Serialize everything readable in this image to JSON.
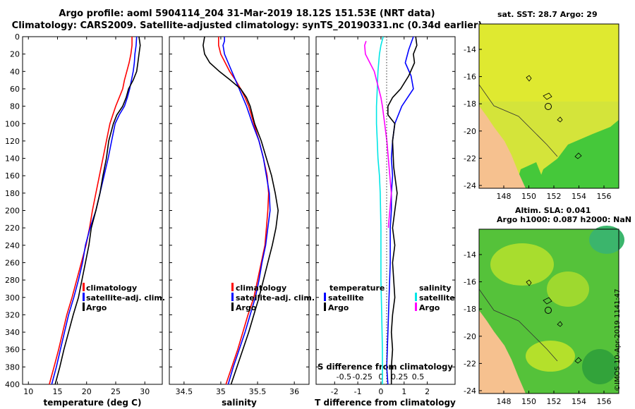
{
  "header": {
    "title_line1": "Argo profile: aoml 5904114_204 31-Mar-2019 18.12S 151.53E (NRT data)",
    "title_line2": "Climatology: CARS2009. Satellite-adjusted climatology: synTS_20190331.nc (0.34d earlier)"
  },
  "colors": {
    "climatology": "#ff0000",
    "satellite": "#0000ff",
    "argo": "#000000",
    "sal_argo": "#ff00ff",
    "sal_sat": "#00e6e6"
  },
  "chart_data": [
    {
      "type": "line",
      "id": "temperature",
      "xlabel": "temperature (deg C)",
      "ylabel": "",
      "xlim": [
        9,
        33
      ],
      "ylim": [
        400,
        0
      ],
      "xticks": [
        "10",
        "15",
        "20",
        "25",
        "30"
      ],
      "yticks": [
        "0",
        "20",
        "40",
        "60",
        "80",
        "100",
        "120",
        "140",
        "160",
        "180",
        "200",
        "220",
        "240",
        "260",
        "280",
        "300",
        "320",
        "340",
        "360",
        "380",
        "400"
      ],
      "legend": [
        "climatology",
        "satellite-adj. clim.",
        "Argo"
      ],
      "series": [
        {
          "name": "climatology",
          "color": "#ff0000",
          "points": [
            [
              27.8,
              0
            ],
            [
              27.8,
              10
            ],
            [
              27.6,
              20
            ],
            [
              27.3,
              30
            ],
            [
              26.9,
              40
            ],
            [
              26.5,
              50
            ],
            [
              26.2,
              60
            ],
            [
              25.6,
              70
            ],
            [
              25.0,
              80
            ],
            [
              24.5,
              90
            ],
            [
              24.0,
              100
            ],
            [
              23.4,
              120
            ],
            [
              22.8,
              140
            ],
            [
              22.2,
              160
            ],
            [
              21.6,
              180
            ],
            [
              21.0,
              200
            ],
            [
              20.5,
              220
            ],
            [
              19.9,
              240
            ],
            [
              19.1,
              260
            ],
            [
              18.3,
              280
            ],
            [
              17.5,
              300
            ],
            [
              16.6,
              320
            ],
            [
              15.9,
              340
            ],
            [
              15.2,
              360
            ],
            [
              14.4,
              380
            ],
            [
              13.6,
              400
            ]
          ]
        },
        {
          "name": "satellite-adj. clim.",
          "color": "#0000ff",
          "points": [
            [
              28.6,
              0
            ],
            [
              28.5,
              10
            ],
            [
              28.3,
              20
            ],
            [
              28.2,
              30
            ],
            [
              28.0,
              40
            ],
            [
              27.7,
              50
            ],
            [
              27.4,
              60
            ],
            [
              27.0,
              70
            ],
            [
              26.5,
              80
            ],
            [
              25.6,
              90
            ],
            [
              24.9,
              100
            ],
            [
              24.3,
              120
            ],
            [
              23.7,
              140
            ],
            [
              23.0,
              160
            ],
            [
              22.3,
              180
            ],
            [
              21.6,
              200
            ],
            [
              20.6,
              220
            ],
            [
              19.8,
              240
            ],
            [
              19.3,
              260
            ],
            [
              18.6,
              280
            ],
            [
              17.8,
              300
            ],
            [
              16.9,
              320
            ],
            [
              16.2,
              340
            ],
            [
              15.5,
              360
            ],
            [
              14.8,
              380
            ],
            [
              14.0,
              400
            ]
          ]
        },
        {
          "name": "Argo",
          "color": "#000000",
          "points": [
            [
              29.0,
              0
            ],
            [
              29.2,
              10
            ],
            [
              29.0,
              20
            ],
            [
              28.8,
              30
            ],
            [
              28.6,
              40
            ],
            [
              28.0,
              50
            ],
            [
              27.2,
              60
            ],
            [
              26.8,
              70
            ],
            [
              26.2,
              80
            ],
            [
              25.2,
              90
            ],
            [
              24.6,
              100
            ],
            [
              23.8,
              120
            ],
            [
              23.4,
              140
            ],
            [
              22.8,
              160
            ],
            [
              22.3,
              180
            ],
            [
              21.6,
              200
            ],
            [
              20.8,
              220
            ],
            [
              20.4,
              240
            ],
            [
              19.8,
              260
            ],
            [
              19.2,
              280
            ],
            [
              18.6,
              300
            ],
            [
              17.7,
              320
            ],
            [
              16.9,
              340
            ],
            [
              16.1,
              360
            ],
            [
              15.4,
              380
            ],
            [
              14.6,
              400
            ]
          ]
        }
      ]
    },
    {
      "type": "line",
      "id": "salinity",
      "xlabel": "salinity",
      "xlim": [
        34.3,
        36.2
      ],
      "ylim": [
        400,
        0
      ],
      "xticks": [
        "34.5",
        "35",
        "35.5",
        "36"
      ],
      "legend": [
        "climatology",
        "satellite-adj. clim.",
        "Argo"
      ],
      "series": [
        {
          "name": "climatology",
          "color": "#ff0000",
          "points": [
            [
              34.97,
              0
            ],
            [
              34.97,
              10
            ],
            [
              35.0,
              20
            ],
            [
              35.06,
              30
            ],
            [
              35.12,
              40
            ],
            [
              35.2,
              50
            ],
            [
              35.27,
              60
            ],
            [
              35.33,
              70
            ],
            [
              35.38,
              80
            ],
            [
              35.45,
              100
            ],
            [
              35.52,
              120
            ],
            [
              35.58,
              140
            ],
            [
              35.63,
              160
            ],
            [
              35.65,
              180
            ],
            [
              35.64,
              200
            ],
            [
              35.62,
              220
            ],
            [
              35.6,
              240
            ],
            [
              35.55,
              260
            ],
            [
              35.5,
              280
            ],
            [
              35.45,
              300
            ],
            [
              35.37,
              320
            ],
            [
              35.3,
              340
            ],
            [
              35.23,
              360
            ],
            [
              35.15,
              380
            ],
            [
              35.07,
              400
            ]
          ]
        },
        {
          "name": "satellite-adj. clim.",
          "color": "#0000ff",
          "points": [
            [
              35.05,
              0
            ],
            [
              35.05,
              5
            ],
            [
              35.03,
              10
            ],
            [
              35.05,
              20
            ],
            [
              35.1,
              30
            ],
            [
              35.15,
              40
            ],
            [
              35.2,
              50
            ],
            [
              35.25,
              60
            ],
            [
              35.3,
              70
            ],
            [
              35.35,
              80
            ],
            [
              35.43,
              100
            ],
            [
              35.52,
              120
            ],
            [
              35.58,
              140
            ],
            [
              35.62,
              160
            ],
            [
              35.66,
              180
            ],
            [
              35.67,
              200
            ],
            [
              35.64,
              220
            ],
            [
              35.61,
              240
            ],
            [
              35.56,
              260
            ],
            [
              35.52,
              280
            ],
            [
              35.47,
              300
            ],
            [
              35.4,
              320
            ],
            [
              35.33,
              340
            ],
            [
              35.25,
              360
            ],
            [
              35.17,
              380
            ],
            [
              35.1,
              400
            ]
          ]
        },
        {
          "name": "Argo",
          "color": "#000000",
          "points": [
            [
              34.78,
              0
            ],
            [
              34.76,
              10
            ],
            [
              34.78,
              20
            ],
            [
              34.85,
              30
            ],
            [
              34.98,
              40
            ],
            [
              35.13,
              50
            ],
            [
              35.27,
              60
            ],
            [
              35.35,
              70
            ],
            [
              35.4,
              80
            ],
            [
              35.46,
              100
            ],
            [
              35.55,
              120
            ],
            [
              35.62,
              140
            ],
            [
              35.69,
              160
            ],
            [
              35.74,
              180
            ],
            [
              35.78,
              200
            ],
            [
              35.75,
              220
            ],
            [
              35.7,
              240
            ],
            [
              35.64,
              260
            ],
            [
              35.58,
              280
            ],
            [
              35.52,
              300
            ],
            [
              35.45,
              320
            ],
            [
              35.38,
              340
            ],
            [
              35.3,
              360
            ],
            [
              35.22,
              380
            ],
            [
              35.14,
              400
            ]
          ]
        }
      ]
    },
    {
      "type": "line",
      "id": "difference",
      "xlabel": "T difference from climatology",
      "xlabel_top": "S difference from climatology",
      "xlim": [
        -2.8,
        3.2
      ],
      "ylim": [
        400,
        0
      ],
      "xticks": [
        "-2",
        "-1",
        "0",
        "1",
        "2"
      ],
      "xticks_salinity": [
        "-0.5",
        "-0.25",
        "0",
        "0.25",
        "0.5"
      ],
      "legend_left_title": "temperature",
      "legend_left": [
        "satellite",
        "Argo"
      ],
      "legend_right_title": "salinity",
      "legend_right": [
        "satellite",
        "Argo"
      ],
      "series": [
        {
          "name": "temperature satellite",
          "color": "#0000ff",
          "points": [
            [
              1.4,
              0
            ],
            [
              1.2,
              15
            ],
            [
              1.05,
              30
            ],
            [
              1.3,
              45
            ],
            [
              1.4,
              60
            ],
            [
              0.9,
              80
            ],
            [
              0.6,
              100
            ],
            [
              0.5,
              120
            ],
            [
              0.45,
              140
            ],
            [
              0.5,
              160
            ],
            [
              0.45,
              180
            ],
            [
              0.45,
              200
            ],
            [
              0.4,
              220
            ],
            [
              0.4,
              260
            ],
            [
              0.35,
              300
            ],
            [
              0.3,
              340
            ],
            [
              0.25,
              380
            ],
            [
              0.3,
              400
            ]
          ]
        },
        {
          "name": "temperature Argo",
          "color": "#000000",
          "points": [
            [
              1.5,
              0
            ],
            [
              1.55,
              10
            ],
            [
              1.4,
              20
            ],
            [
              1.45,
              30
            ],
            [
              1.2,
              45
            ],
            [
              0.85,
              60
            ],
            [
              0.5,
              70
            ],
            [
              0.3,
              80
            ],
            [
              0.3,
              90
            ],
            [
              0.6,
              100
            ],
            [
              0.5,
              120
            ],
            [
              0.55,
              150
            ],
            [
              0.7,
              180
            ],
            [
              0.6,
              200
            ],
            [
              0.5,
              220
            ],
            [
              0.6,
              240
            ],
            [
              0.5,
              260
            ],
            [
              0.55,
              280
            ],
            [
              0.6,
              300
            ],
            [
              0.5,
              320
            ],
            [
              0.45,
              340
            ],
            [
              0.5,
              360
            ],
            [
              0.45,
              380
            ],
            [
              0.45,
              400
            ]
          ]
        },
        {
          "name": "salinity satellite",
          "color": "#00e6e6",
          "points": [
            [
              0.03,
              0
            ],
            [
              0.0,
              10
            ],
            [
              -0.02,
              20
            ],
            [
              -0.04,
              40
            ],
            [
              -0.05,
              60
            ],
            [
              -0.06,
              80
            ],
            [
              -0.06,
              100
            ],
            [
              -0.05,
              120
            ],
            [
              -0.04,
              140
            ],
            [
              -0.02,
              160
            ],
            [
              -0.01,
              180
            ],
            [
              0.0,
              220
            ],
            [
              0.0,
              280
            ],
            [
              0.01,
              320
            ],
            [
              0.02,
              360
            ],
            [
              0.02,
              400
            ]
          ]
        },
        {
          "name": "salinity Argo",
          "color": "#ff00ff",
          "points": [
            [
              -0.2,
              5
            ],
            [
              -0.22,
              10
            ],
            [
              -0.21,
              20
            ],
            [
              -0.15,
              30
            ],
            [
              -0.09,
              40
            ],
            [
              -0.06,
              50
            ],
            [
              -0.03,
              60
            ],
            [
              0.0,
              70
            ],
            [
              0.02,
              80
            ],
            [
              0.05,
              100
            ],
            [
              0.08,
              120
            ],
            [
              0.1,
              140
            ],
            [
              0.12,
              160
            ],
            [
              0.14,
              180
            ],
            [
              0.12,
              200
            ],
            [
              0.1,
              220
            ]
          ]
        }
      ]
    }
  ],
  "maps": {
    "sst_caption": "sat. SST: 28.7 Argo: 29",
    "sla_caption_line1": "Altim. SLA: 0.041",
    "sla_caption_line2": "Argo h1000: 0.087 h2000: NaN",
    "lat_ticks": [
      "-14",
      "-16",
      "-18",
      "-20",
      "-22",
      "-24"
    ],
    "lon_ticks": [
      "148",
      "150",
      "152",
      "154",
      "156"
    ],
    "land_color": "#f6c18f",
    "sst_sea_color": "#d4e43a",
    "sla_sea_color": "#55c23a"
  },
  "stamp": "©IMOS 10-Apr-2019 1141:47"
}
